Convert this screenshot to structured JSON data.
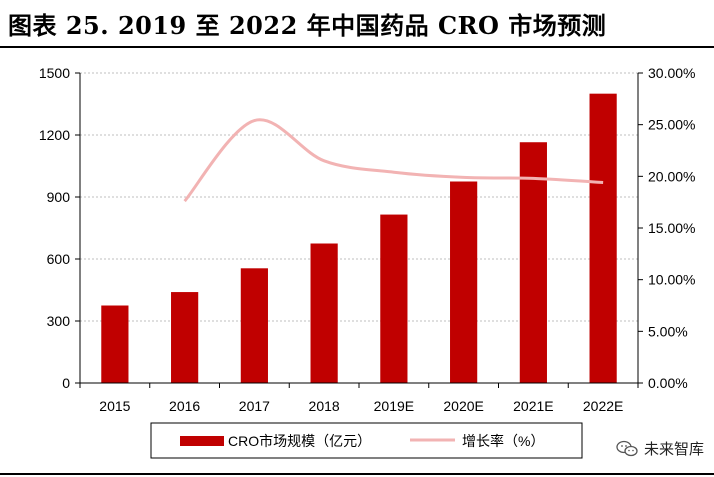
{
  "title": "图表 25. 2019 至 2022 年中国药品 CRO 市场预测",
  "watermark": "未来智库",
  "chart_data": {
    "type": "bar",
    "categories": [
      "2015",
      "2016",
      "2017",
      "2018",
      "2019E",
      "2020E",
      "2021E",
      "2022E"
    ],
    "series": [
      {
        "name": "CRO市场规模（亿元）",
        "type": "bar",
        "axis": "left",
        "color": "#c00000",
        "values": [
          375,
          440,
          555,
          675,
          815,
          975,
          1165,
          1400
        ]
      },
      {
        "name": "增长率（%）",
        "type": "line",
        "axis": "right",
        "color": "#f2b3b3",
        "values": [
          null,
          17.6,
          25.4,
          21.5,
          20.4,
          19.9,
          19.8,
          19.4
        ]
      }
    ],
    "ylim_left": [
      0,
      1500
    ],
    "yticks_left": [
      "0",
      "300",
      "600",
      "900",
      "1200",
      "1500"
    ],
    "ylim_right": [
      0,
      30
    ],
    "yticks_right": [
      "0.00%",
      "5.00%",
      "10.00%",
      "15.00%",
      "20.00%",
      "25.00%",
      "30.00%"
    ],
    "grid": true,
    "legend_position": "bottom"
  }
}
